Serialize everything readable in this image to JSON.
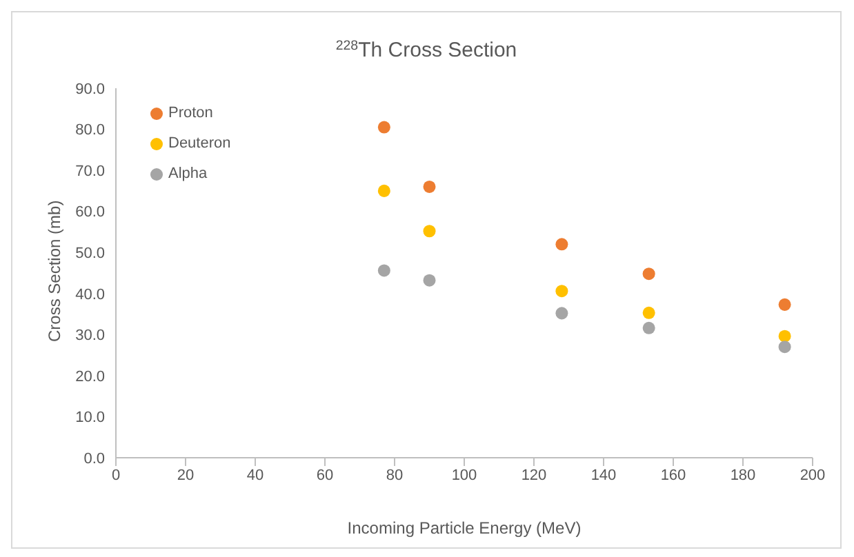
{
  "chart_data": {
    "type": "scatter",
    "title": "$^{228}$Th Cross Section",
    "xlabel": "Incoming Particle Energy (MeV)",
    "ylabel": "Cross Section (mb)",
    "x": [
      77,
      90,
      128,
      153,
      192
    ],
    "series": [
      {
        "name": "Proton",
        "color": "#ed7d31",
        "values": [
          80.5,
          66,
          52,
          44.8,
          37.3
        ]
      },
      {
        "name": "Deuteron",
        "color": "#ffc000",
        "values": [
          65,
          55.2,
          40.6,
          35.3,
          29.6
        ]
      },
      {
        "name": "Alpha",
        "color": "#a5a5a5",
        "values": [
          45.6,
          43.2,
          35.2,
          31.6,
          27
        ]
      }
    ],
    "xlim": [
      0,
      200
    ],
    "xticks": [
      0,
      20,
      40,
      60,
      80,
      100,
      120,
      140,
      160,
      180,
      200
    ],
    "ylim": [
      0,
      90
    ],
    "yticks": [
      {
        "value": 0,
        "label": "0.0"
      },
      {
        "value": 10,
        "label": "10.0"
      },
      {
        "value": 20,
        "label": "20.0"
      },
      {
        "value": 30,
        "label": "30.0"
      },
      {
        "value": 40,
        "label": "40.0"
      },
      {
        "value": 50,
        "label": "50.0"
      },
      {
        "value": 60,
        "label": "60.0"
      },
      {
        "value": 70,
        "label": "70.0"
      },
      {
        "value": 80,
        "label": "80.0"
      },
      {
        "value": 90,
        "label": "90.0"
      }
    ],
    "grid": false,
    "legend": "top left",
    "marker": "circle"
  }
}
